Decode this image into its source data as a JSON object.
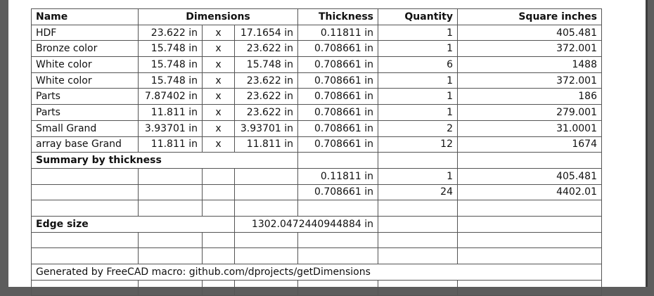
{
  "header": {
    "name": "Name",
    "dimensions": "Dimensions",
    "thickness": "Thickness",
    "quantity": "Quantity",
    "square_inches": "Square inches"
  },
  "rows": [
    {
      "name": "HDF",
      "dim1": "23.622 in",
      "x": "x",
      "dim2": "17.1654 in",
      "thickness": "0.11811 in",
      "quantity": "1",
      "square_inches": "405.481"
    },
    {
      "name": "Bronze color",
      "dim1": "15.748 in",
      "x": "x",
      "dim2": "23.622 in",
      "thickness": "0.708661 in",
      "quantity": "1",
      "square_inches": "372.001"
    },
    {
      "name": "White color",
      "dim1": "15.748 in",
      "x": "x",
      "dim2": "15.748 in",
      "thickness": "0.708661 in",
      "quantity": "6",
      "square_inches": "1488"
    },
    {
      "name": "White color",
      "dim1": "15.748 in",
      "x": "x",
      "dim2": "23.622 in",
      "thickness": "0.708661 in",
      "quantity": "1",
      "square_inches": "372.001"
    },
    {
      "name": "Parts",
      "dim1": "7.87402 in",
      "x": "x",
      "dim2": "23.622 in",
      "thickness": "0.708661 in",
      "quantity": "1",
      "square_inches": "186"
    },
    {
      "name": "Parts",
      "dim1": "11.811 in",
      "x": "x",
      "dim2": "23.622 in",
      "thickness": "0.708661 in",
      "quantity": "1",
      "square_inches": "279.001"
    },
    {
      "name": "Small Grand",
      "dim1": "3.93701 in",
      "x": "x",
      "dim2": "3.93701 in",
      "thickness": "0.708661 in",
      "quantity": "2",
      "square_inches": "31.0001"
    },
    {
      "name": "array base Grand",
      "dim1": "11.811 in",
      "x": "x",
      "dim2": "11.811 in",
      "thickness": "0.708661 in",
      "quantity": "12",
      "square_inches": "1674"
    }
  ],
  "summary": {
    "title": "Summary by thickness",
    "rows": [
      {
        "thickness": "0.11811 in",
        "quantity": "1",
        "square_inches": "405.481"
      },
      {
        "thickness": "0.708661 in",
        "quantity": "24",
        "square_inches": "4402.01"
      }
    ]
  },
  "edge": {
    "label": "Edge size",
    "value": "1302.0472440944884 in"
  },
  "footer": {
    "generated_by": "Generated by FreeCAD macro: github.com/dprojects/getDimensions"
  }
}
